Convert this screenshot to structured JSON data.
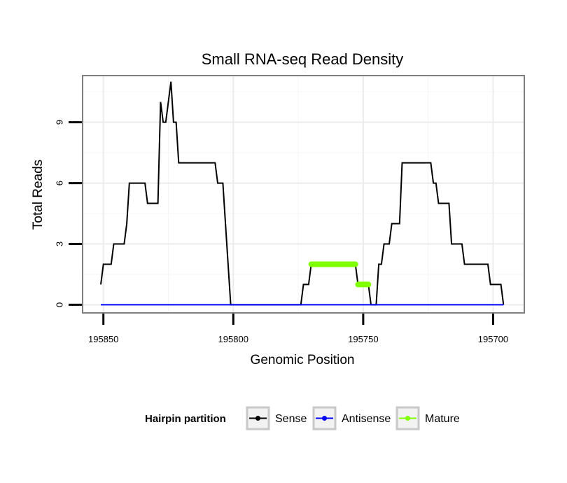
{
  "chart_data": {
    "type": "line",
    "title": "Small RNA-seq Read Density",
    "xlabel": "Genomic Position",
    "ylabel": "Total Reads",
    "x_reversed": true,
    "xlim": [
      195858,
      195688
    ],
    "ylim": [
      -0.4,
      11.3
    ],
    "x_ticks": [
      195850,
      195800,
      195750,
      195700
    ],
    "x_tick_labels": [
      "195850",
      "195800",
      "195750",
      "195700"
    ],
    "y_ticks": [
      0,
      3,
      6,
      9
    ],
    "y_tick_labels": [
      "0",
      "3",
      "6",
      "9"
    ],
    "grid": true,
    "legend": {
      "title": "Hairpin partition",
      "position": "bottom",
      "entries": [
        "Sense",
        "Antisense",
        "Mature"
      ]
    },
    "series": [
      {
        "name": "Sense",
        "color": "#000000",
        "points": [
          [
            195851,
            1
          ],
          [
            195850,
            2
          ],
          [
            195847,
            2
          ],
          [
            195846,
            3
          ],
          [
            195842,
            3
          ],
          [
            195841,
            4
          ],
          [
            195840,
            6
          ],
          [
            195834,
            6
          ],
          [
            195833,
            5
          ],
          [
            195829,
            5
          ],
          [
            195828,
            10
          ],
          [
            195827,
            9
          ],
          [
            195826,
            9
          ],
          [
            195824,
            11
          ],
          [
            195823,
            9
          ],
          [
            195822,
            9
          ],
          [
            195821,
            7
          ],
          [
            195807,
            7
          ],
          [
            195806,
            6
          ],
          [
            195804,
            6
          ],
          [
            195803,
            4
          ],
          [
            195801,
            0
          ],
          [
            195774,
            0
          ],
          [
            195773,
            1
          ],
          [
            195771,
            1
          ],
          [
            195770,
            2
          ],
          [
            195753,
            2
          ],
          [
            195752,
            1
          ],
          [
            195748,
            1
          ],
          [
            195747,
            0
          ],
          [
            195745,
            0
          ],
          [
            195744,
            2
          ],
          [
            195743,
            2
          ],
          [
            195742,
            3
          ],
          [
            195740,
            3
          ],
          [
            195739,
            4
          ],
          [
            195736,
            4
          ],
          [
            195735,
            7
          ],
          [
            195724,
            7
          ],
          [
            195723,
            6
          ],
          [
            195722,
            6
          ],
          [
            195721,
            5
          ],
          [
            195717,
            5
          ],
          [
            195716,
            3
          ],
          [
            195712,
            3
          ],
          [
            195711,
            2
          ],
          [
            195702,
            2
          ],
          [
            195701,
            1
          ],
          [
            195697,
            1
          ],
          [
            195696,
            0
          ]
        ]
      },
      {
        "name": "Antisense",
        "color": "#0000ff",
        "points": [
          [
            195851,
            0
          ],
          [
            195696,
            0
          ]
        ]
      },
      {
        "name": "Mature",
        "color": "#7fff00",
        "segments": [
          {
            "x_start": 195770,
            "x_end": 195753,
            "y": 2
          },
          {
            "x_start": 195752,
            "x_end": 195748,
            "y": 1
          }
        ]
      }
    ]
  }
}
